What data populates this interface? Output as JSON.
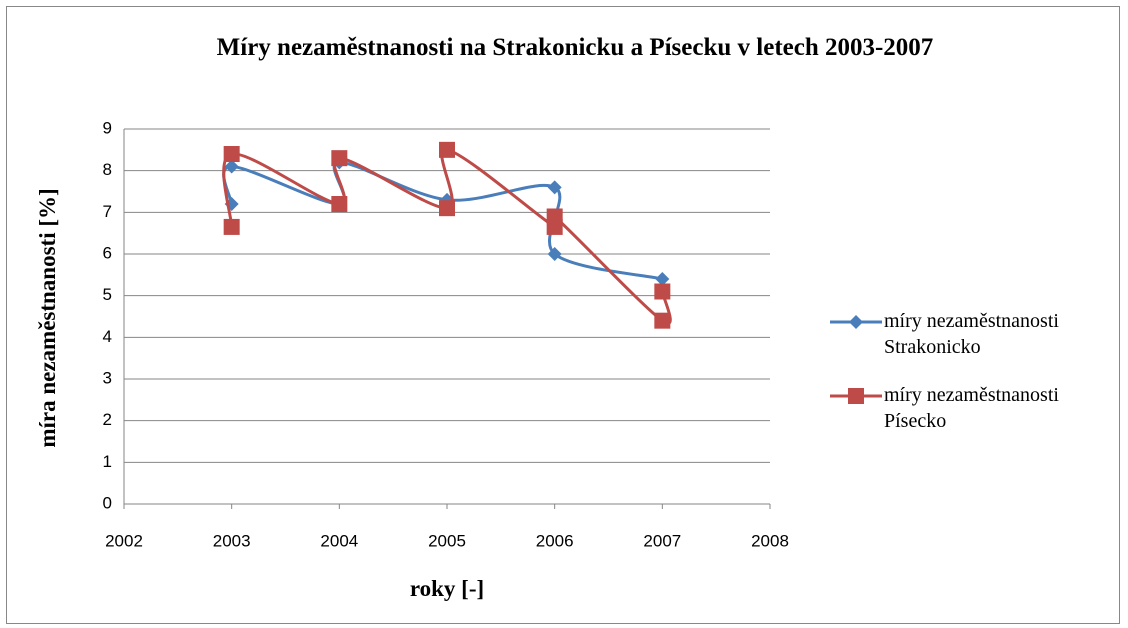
{
  "chart_data": {
    "type": "scatter",
    "title": "Míry nezaměstnanosti na Strakonicku a Písecku v letech 2003-2007",
    "x_label": "roky [-]",
    "y_label": "míra nezaměstnanosti [%]",
    "xlim": [
      2002,
      2008
    ],
    "xticks": [
      2002,
      2003,
      2004,
      2005,
      2006,
      2007,
      2008
    ],
    "ylim": [
      0,
      9
    ],
    "yticks": [
      0,
      1,
      2,
      3,
      4,
      5,
      6,
      7,
      8,
      9
    ],
    "grid": true,
    "smooth": true,
    "legend": "right",
    "series": [
      {
        "name": "míry nezaměstnanosti Strakonicko",
        "color": "#4a7ebb",
        "marker": "diamond",
        "x": [
          2003,
          2003,
          2004,
          2004,
          2005,
          2006,
          2006,
          2007
        ],
        "values": [
          7.2,
          8.1,
          7.2,
          8.2,
          7.3,
          7.6,
          6.0,
          5.4
        ]
      },
      {
        "name": "míry nezaměstnanosti Písecko",
        "color": "#be4b48",
        "marker": "square",
        "x": [
          2003,
          2003,
          2004,
          2004,
          2005,
          2005,
          2006,
          2006,
          2007,
          2007
        ],
        "values": [
          6.65,
          8.4,
          7.2,
          8.3,
          7.1,
          8.5,
          6.65,
          6.9,
          4.4,
          5.1
        ]
      }
    ]
  }
}
